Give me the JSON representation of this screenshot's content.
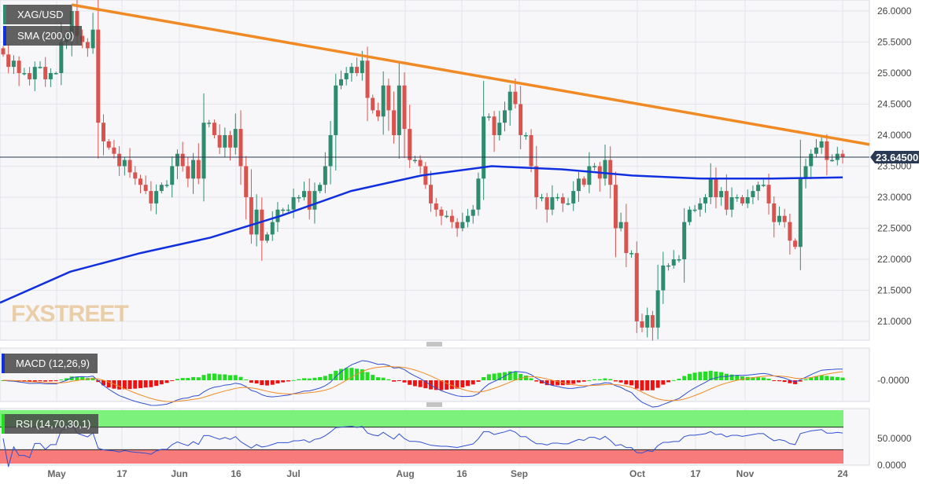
{
  "chart_data": {
    "type": "candlestick",
    "symbol": "XAG/USD",
    "sma_label": "SMA (200,0)",
    "macd_label": "MACD (12,26,9)",
    "rsi_label": "RSI (14,70,30,1)",
    "last_price": "23.64500",
    "watermark": "FXSTREET",
    "ylim": [
      20.7,
      26.2
    ],
    "y_ticks": [
      "26.0000",
      "25.5000",
      "25.0000",
      "24.5000",
      "24.0000",
      "23.5000",
      "23.0000",
      "22.5000",
      "22.0000",
      "21.5000",
      "21.0000"
    ],
    "macd_tick": "-0.0000",
    "rsi_ticks": [
      "50.0000",
      "0.0000"
    ],
    "x_ticks": [
      "May",
      "17",
      "Jun",
      "16",
      "Jul",
      "Aug",
      "16",
      "Sep",
      "Oct",
      "17",
      "Nov",
      "24"
    ],
    "closes": [
      25.3,
      25.1,
      25.2,
      25.0,
      25.0,
      24.9,
      25.1,
      25.1,
      24.9,
      25.0,
      25.0,
      25.5,
      25.6,
      26.0,
      25.6,
      25.5,
      25.4,
      25.7,
      24.2,
      23.9,
      23.8,
      23.7,
      23.5,
      23.6,
      23.4,
      23.3,
      23.2,
      23.1,
      22.9,
      23.1,
      23.2,
      23.2,
      23.5,
      23.7,
      23.5,
      23.3,
      23.6,
      23.3,
      24.2,
      24.2,
      24.0,
      23.8,
      24.0,
      23.8,
      24.1,
      23.5,
      23.0,
      22.4,
      22.8,
      22.3,
      22.4,
      22.6,
      22.8,
      22.8,
      22.8,
      23.0,
      23.0,
      23.1,
      22.8,
      23.1,
      23.2,
      23.5,
      24.0,
      24.8,
      24.9,
      25.0,
      25.1,
      25.0,
      25.2,
      24.6,
      24.4,
      24.3,
      24.8,
      24.4,
      24.0,
      24.8,
      24.1,
      23.6,
      23.6,
      23.5,
      23.2,
      22.9,
      22.8,
      22.7,
      22.7,
      22.6,
      22.5,
      22.6,
      22.7,
      22.8,
      23.3,
      24.3,
      24.3,
      24.0,
      24.2,
      24.4,
      24.7,
      24.5,
      24.0,
      24.0,
      23.5,
      23.0,
      23.0,
      22.8,
      23.0,
      23.0,
      22.9,
      22.9,
      23.1,
      23.3,
      23.2,
      23.5,
      23.5,
      23.3,
      23.6,
      23.2,
      22.5,
      22.6,
      22.1,
      22.1,
      21.0,
      20.9,
      21.1,
      20.9,
      21.5,
      21.9,
      21.9,
      22.0,
      22.0,
      22.6,
      22.8,
      22.8,
      22.9,
      23.0,
      23.3,
      23.0,
      23.1,
      22.8,
      23.0,
      23.0,
      22.9,
      23.0,
      23.1,
      23.2,
      23.2,
      22.9,
      22.6,
      22.7,
      22.6,
      22.3,
      22.2,
      23.3,
      23.5,
      23.7,
      23.8,
      23.9,
      23.6,
      23.6,
      23.7,
      23.645
    ],
    "sma_200": [
      21.3,
      21.8,
      22.1,
      22.35,
      22.7,
      23.1,
      23.35,
      23.5,
      23.45,
      23.35,
      23.3,
      23.3,
      23.32
    ],
    "trendline": {
      "from": 26.1,
      "to": 23.85
    },
    "colors": {
      "up": "#2e8b6e",
      "down": "#d9534f",
      "sma": "#1030e0",
      "trend": "#f08a24",
      "macd": "#3050d0",
      "signal": "#f08a24",
      "hist_up": "#22dd22",
      "hist_down": "#ee1111",
      "rsi_overbought": "#7cf27c",
      "rsi_oversold": "#f77b7b"
    }
  }
}
